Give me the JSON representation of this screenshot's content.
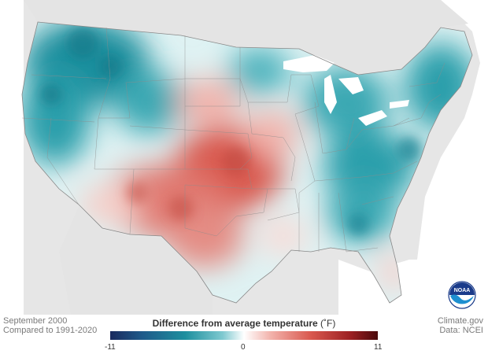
{
  "date": "September 2000",
  "baseline": "Compared to 1991-2020",
  "legend": {
    "title": "Difference from average temperature",
    "unit": "(˚F)",
    "min_label": "-11",
    "mid_label": "0",
    "max_label": "11",
    "min": -11,
    "max": 11
  },
  "credit": "Climate.gov",
  "source": "Data: NCEI",
  "logo_text": "NOAA",
  "colors": {
    "cold_extreme": "#1a2a5e",
    "cold": "#1d8f9e",
    "neutral": "#ffffff",
    "warm": "#d9584e",
    "warm_extreme": "#4a0a0c",
    "land_background": "#e6e6e6",
    "water": "#ffffff"
  }
}
